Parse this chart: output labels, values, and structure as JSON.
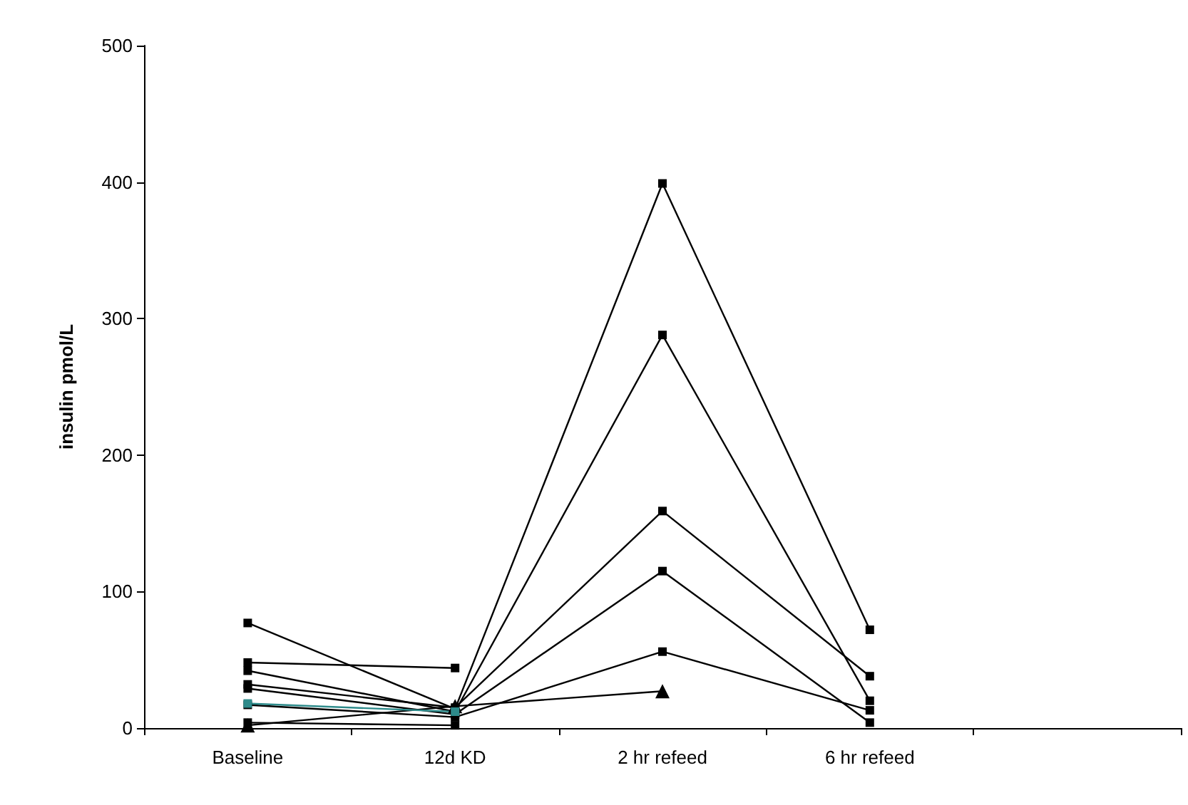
{
  "chart_data": {
    "type": "line",
    "ylabel": "insulin pmol/L",
    "categories": [
      "Baseline",
      "12d KD",
      "2 hr refeed",
      "6 hr refeed",
      null
    ],
    "ylim": [
      0,
      500
    ],
    "yticks": [
      0,
      100,
      200,
      300,
      400,
      500
    ],
    "grid": false,
    "marker": "square",
    "line_style": "solid",
    "series": [
      {
        "color": "#000000",
        "values": [
          77,
          14,
          399,
          72,
          null
        ]
      },
      {
        "color": "#000000",
        "values": [
          48,
          44,
          null,
          null,
          null
        ]
      },
      {
        "color": "#000000",
        "values": [
          42,
          12,
          288,
          20,
          null
        ]
      },
      {
        "color": "#000000",
        "values": [
          32,
          15,
          159,
          38,
          null
        ]
      },
      {
        "color": "#000000",
        "values": [
          29,
          10,
          115,
          4,
          null
        ]
      },
      {
        "color": "#000000",
        "values": [
          17,
          8,
          56,
          13,
          null
        ]
      },
      {
        "color": "#000000",
        "marker": "triangle",
        "values": [
          2,
          16,
          27,
          null,
          null
        ]
      },
      {
        "color": "#2e8b8b",
        "values": [
          18,
          12,
          null,
          null,
          null
        ]
      },
      {
        "color": "#000000",
        "values": [
          4,
          2,
          null,
          null,
          null
        ]
      }
    ]
  }
}
